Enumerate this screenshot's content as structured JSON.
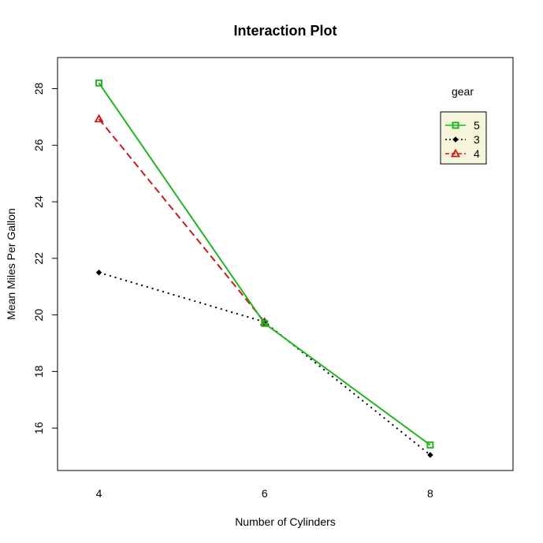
{
  "chart_data": {
    "type": "line",
    "title": "Interaction Plot",
    "xlabel": "Number of Cylinders",
    "ylabel": "Mean Miles Per Gallon",
    "x": [
      4,
      6,
      8
    ],
    "x_tick_labels": [
      "4",
      "6",
      "8"
    ],
    "xlim": [
      3.5,
      9
    ],
    "ylim": [
      14.5,
      29.1
    ],
    "y_ticks": [
      16,
      18,
      20,
      22,
      24,
      26,
      28
    ],
    "legend_title": "gear",
    "legend_placement": "top-right",
    "grid": false,
    "series": [
      {
        "name": "5",
        "values": [
          28.2,
          19.7,
          15.4
        ],
        "color": "#22b522",
        "line_style": "solid",
        "marker": "square"
      },
      {
        "name": "3",
        "values": [
          21.5,
          19.75,
          15.05
        ],
        "color": "#000000",
        "line_style": "dotted",
        "marker": "diamond"
      },
      {
        "name": "4",
        "values": [
          26.93,
          19.75,
          null
        ],
        "color": "#cc1a1a",
        "line_style": "dashed",
        "marker": "triangle"
      }
    ],
    "legend_background": "#f5f5dc"
  }
}
